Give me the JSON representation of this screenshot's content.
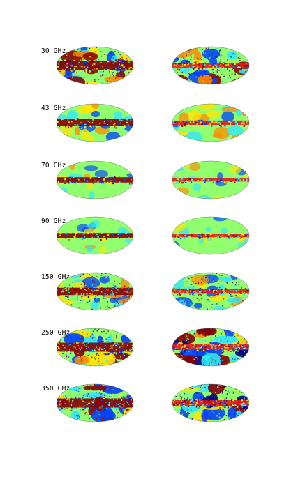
{
  "rows": [
    {
      "label": "30 GHz"
    },
    {
      "label": "43 GHz"
    },
    {
      "label": "70 GHz"
    },
    {
      "label": "90 GHz"
    },
    {
      "label": "150 GHz"
    },
    {
      "label": "250 GHz"
    },
    {
      "label": "350 GHz"
    }
  ],
  "colors": {
    "background": "#91ff6e",
    "deep_red": "#8b0000",
    "red": "#e41a1c",
    "orange": "#ff8c00",
    "yellow": "#ffe600",
    "cyan": "#2fe6ff",
    "blue": "#0043ff",
    "navy": "#00008b"
  }
}
